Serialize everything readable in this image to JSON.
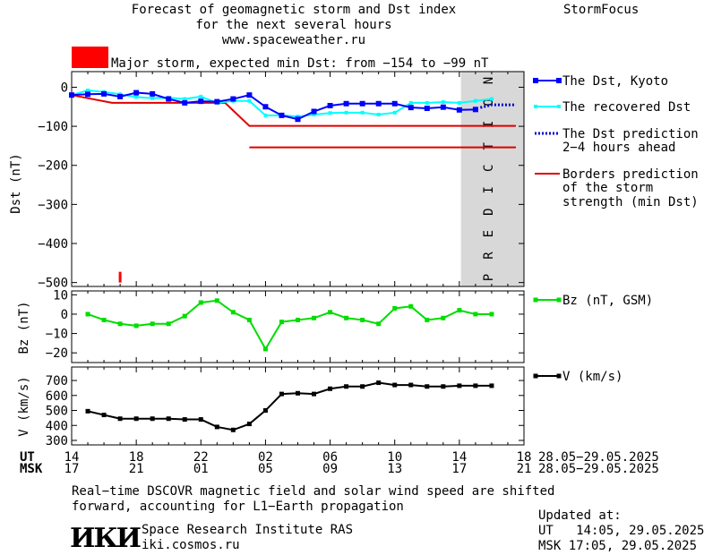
{
  "header": {
    "title_line1": "Forecast of geomagnetic storm and Dst index",
    "title_line2": "for the next several hours",
    "url": "www.spaceweather.ru",
    "brand": "StormFocus",
    "storm_text": "Major storm, expected min Dst: from −154 to −99 nT",
    "storm_color": "#ff0000"
  },
  "chart_data": [
    {
      "type": "line",
      "ylabel": "Dst (nT)",
      "ylim": [
        -510,
        40
      ],
      "yticks": [
        0,
        -100,
        -200,
        -300,
        -400,
        -500
      ],
      "ytick_labels": [
        "0",
        "−100",
        "−200",
        "−300",
        "−400",
        "−500"
      ],
      "prediction_label": "PREDICTION",
      "series": [
        {
          "name": "The Dst, Kyoto",
          "color": "#0000ff",
          "x": [
            14,
            15,
            16,
            17,
            18,
            19,
            20,
            21,
            22,
            23,
            24,
            25,
            26,
            27,
            28,
            29,
            30,
            31,
            32,
            33,
            34,
            35,
            36,
            37,
            38,
            39
          ],
          "y": [
            -20,
            -18,
            -17,
            -24,
            -14,
            -17,
            -30,
            -40,
            -36,
            -37,
            -30,
            -20,
            -50,
            -72,
            -82,
            -62,
            -47,
            -42,
            -42,
            -42,
            -42,
            -52,
            -54,
            -51,
            -58,
            -57
          ]
        },
        {
          "name": "The recovered Dst",
          "color": "#00ffff",
          "x": [
            14,
            15,
            16,
            17,
            18,
            19,
            20,
            21,
            22,
            23,
            24,
            25,
            26,
            27,
            28,
            29,
            30,
            31,
            32,
            33,
            34,
            35,
            36,
            37,
            38,
            39,
            40
          ],
          "y": [
            -20,
            -8,
            -12,
            -18,
            -25,
            -28,
            -27,
            -30,
            -24,
            -40,
            -35,
            -35,
            -72,
            -72,
            -75,
            -70,
            -66,
            -65,
            -65,
            -70,
            -65,
            -40,
            -40,
            -38,
            -40,
            -35,
            -30
          ]
        },
        {
          "name": "The Dst prediction 2–4 hours ahead",
          "color": "#0000cc",
          "x": [
            39.3,
            40,
            41.5
          ],
          "y": [
            -52,
            -45,
            -45
          ]
        },
        {
          "name": "Borders prediction of the storm strength (min Dst)",
          "color": "#e00000",
          "x": [
            14,
            16.5,
            23.5,
            25,
            41.5
          ],
          "y": [
            -20,
            -40,
            -40,
            -99,
            -99
          ],
          "x2": [
            25,
            41.5
          ],
          "y2": [
            -154,
            -154
          ]
        }
      ],
      "storm_marker": {
        "x": 17,
        "y": -500
      }
    },
    {
      "type": "line",
      "ylabel": "Bz (nT)",
      "ylim": [
        -25,
        12
      ],
      "yticks": [
        10,
        0,
        -10,
        -20
      ],
      "ytick_labels": [
        "10",
        "0",
        "−10",
        "−20"
      ],
      "series": [
        {
          "name": "Bz (nT, GSM)",
          "color": "#00dd00",
          "x": [
            15,
            16,
            17,
            18,
            19,
            20,
            21,
            22,
            23,
            24,
            25,
            26,
            27,
            28,
            29,
            30,
            31,
            32,
            33,
            34,
            35,
            36,
            37,
            38,
            39,
            40
          ],
          "y": [
            0,
            -3,
            -5,
            -6,
            -5,
            -5,
            -1,
            6,
            7,
            1,
            -3,
            -18,
            -4,
            -3,
            -2,
            1,
            -2,
            -3,
            -5,
            3,
            4,
            -3,
            -2,
            2,
            0,
            0
          ]
        }
      ]
    },
    {
      "type": "line",
      "ylabel": "V (km/s)",
      "ylim": [
        270,
        790
      ],
      "yticks": [
        700,
        600,
        500,
        400,
        300
      ],
      "ytick_labels": [
        "700",
        "600",
        "500",
        "400",
        "300"
      ],
      "series": [
        {
          "name": "V (km/s)",
          "color": "#000000",
          "x": [
            15,
            16,
            17,
            18,
            19,
            20,
            21,
            22,
            23,
            24,
            25,
            26,
            27,
            28,
            29,
            30,
            31,
            32,
            33,
            34,
            35,
            36,
            37,
            38,
            39,
            40
          ],
          "y": [
            495,
            470,
            445,
            445,
            445,
            445,
            440,
            440,
            390,
            370,
            410,
            500,
            610,
            615,
            610,
            645,
            660,
            660,
            685,
            670,
            670,
            660,
            660,
            665,
            665,
            665
          ]
        }
      ]
    }
  ],
  "xaxis": {
    "min": 14,
    "max": 42,
    "prediction_start": 38.1,
    "ut_label": "UT",
    "msk_label": "MSK",
    "ut_ticks": [
      "14",
      "18",
      "22",
      "02",
      "06",
      "10",
      "14",
      "18"
    ],
    "msk_ticks": [
      "17",
      "21",
      "01",
      "05",
      "09",
      "13",
      "17",
      "21"
    ],
    "date_range": "28.05−29.05.2025"
  },
  "legend": {
    "dst_kyoto": "The Dst, Kyoto",
    "recovered": "The recovered Dst",
    "pred_line1": "The Dst prediction",
    "pred_line2": "2−4 hours ahead",
    "borders_line1": "Borders prediction",
    "borders_line2": "of the storm",
    "borders_line3": "strength (min Dst)",
    "bz": "Bz (nT, GSM)",
    "v": "V (km/s)"
  },
  "footer": {
    "note_line1": "Real−time DSCOVR magnetic field and solar wind speed are shifted",
    "note_line2": "forward, accounting for L1−Earth propagation",
    "logo": "ИКИ",
    "institute": "Space Research Institute RAS",
    "site": "iki.cosmos.ru",
    "updated_label": "Updated at:",
    "ut_updated": "UT   14:05, 29.05.2025",
    "msk_updated": "MSK 17:05, 29.05.2025"
  }
}
